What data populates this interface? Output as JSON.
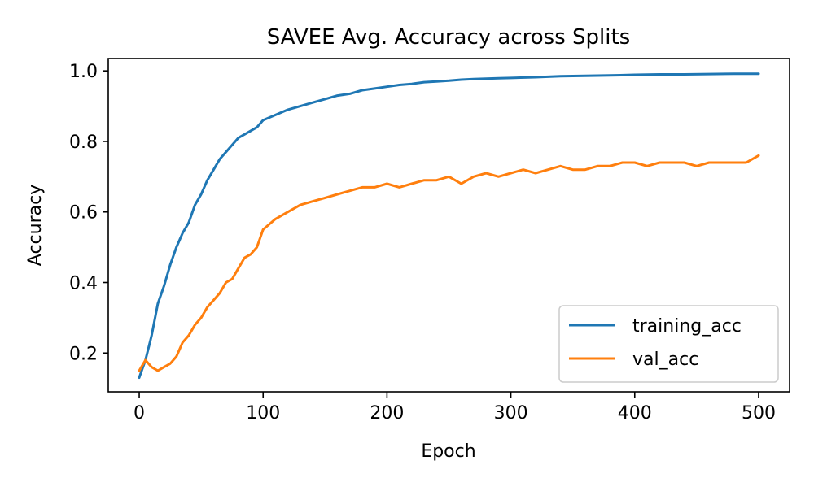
{
  "chart_data": {
    "type": "line",
    "title": "SAVEE Avg. Accuracy across Splits",
    "xlabel": "Epoch",
    "ylabel": "Accuracy",
    "xlim": [
      -25,
      525
    ],
    "ylim": [
      0.09,
      1.035
    ],
    "xticks": [
      0,
      100,
      200,
      300,
      400,
      500
    ],
    "xtick_labels": [
      "0",
      "100",
      "200",
      "300",
      "400",
      "500"
    ],
    "yticks": [
      0.2,
      0.4,
      0.6,
      0.8,
      1.0
    ],
    "ytick_labels": [
      "0.2",
      "0.4",
      "0.6",
      "0.8",
      "1.0"
    ],
    "grid": false,
    "legend_position": "lower-right",
    "series": [
      {
        "name": "training_acc",
        "color": "#1f77b4",
        "x": [
          0,
          5,
          10,
          15,
          20,
          25,
          30,
          35,
          40,
          45,
          50,
          55,
          60,
          65,
          70,
          75,
          80,
          85,
          90,
          95,
          100,
          110,
          120,
          130,
          140,
          150,
          160,
          170,
          180,
          190,
          200,
          210,
          220,
          230,
          240,
          250,
          260,
          270,
          280,
          290,
          300,
          320,
          340,
          360,
          380,
          400,
          420,
          440,
          460,
          480,
          500
        ],
        "y": [
          0.13,
          0.18,
          0.25,
          0.34,
          0.39,
          0.45,
          0.5,
          0.54,
          0.57,
          0.62,
          0.65,
          0.69,
          0.72,
          0.75,
          0.77,
          0.79,
          0.81,
          0.82,
          0.83,
          0.84,
          0.86,
          0.875,
          0.89,
          0.9,
          0.91,
          0.92,
          0.93,
          0.935,
          0.945,
          0.95,
          0.955,
          0.96,
          0.963,
          0.968,
          0.97,
          0.972,
          0.975,
          0.977,
          0.978,
          0.979,
          0.98,
          0.982,
          0.985,
          0.986,
          0.987,
          0.989,
          0.99,
          0.99,
          0.991,
          0.992,
          0.992
        ]
      },
      {
        "name": "val_acc",
        "color": "#ff7f0e",
        "x": [
          0,
          5,
          10,
          15,
          20,
          25,
          30,
          35,
          40,
          45,
          50,
          55,
          60,
          65,
          70,
          75,
          80,
          85,
          90,
          95,
          100,
          110,
          120,
          130,
          140,
          150,
          160,
          170,
          180,
          190,
          200,
          210,
          220,
          230,
          240,
          250,
          260,
          270,
          280,
          290,
          300,
          310,
          320,
          330,
          340,
          350,
          360,
          370,
          380,
          390,
          400,
          410,
          420,
          430,
          440,
          450,
          460,
          470,
          480,
          490,
          500
        ],
        "y": [
          0.15,
          0.18,
          0.16,
          0.15,
          0.16,
          0.17,
          0.19,
          0.23,
          0.25,
          0.28,
          0.3,
          0.33,
          0.35,
          0.37,
          0.4,
          0.41,
          0.44,
          0.47,
          0.48,
          0.5,
          0.55,
          0.58,
          0.6,
          0.62,
          0.63,
          0.64,
          0.65,
          0.66,
          0.67,
          0.67,
          0.68,
          0.67,
          0.68,
          0.69,
          0.69,
          0.7,
          0.68,
          0.7,
          0.71,
          0.7,
          0.71,
          0.72,
          0.71,
          0.72,
          0.73,
          0.72,
          0.72,
          0.73,
          0.73,
          0.74,
          0.74,
          0.73,
          0.74,
          0.74,
          0.74,
          0.73,
          0.74,
          0.74,
          0.74,
          0.74,
          0.76
        ]
      }
    ]
  }
}
